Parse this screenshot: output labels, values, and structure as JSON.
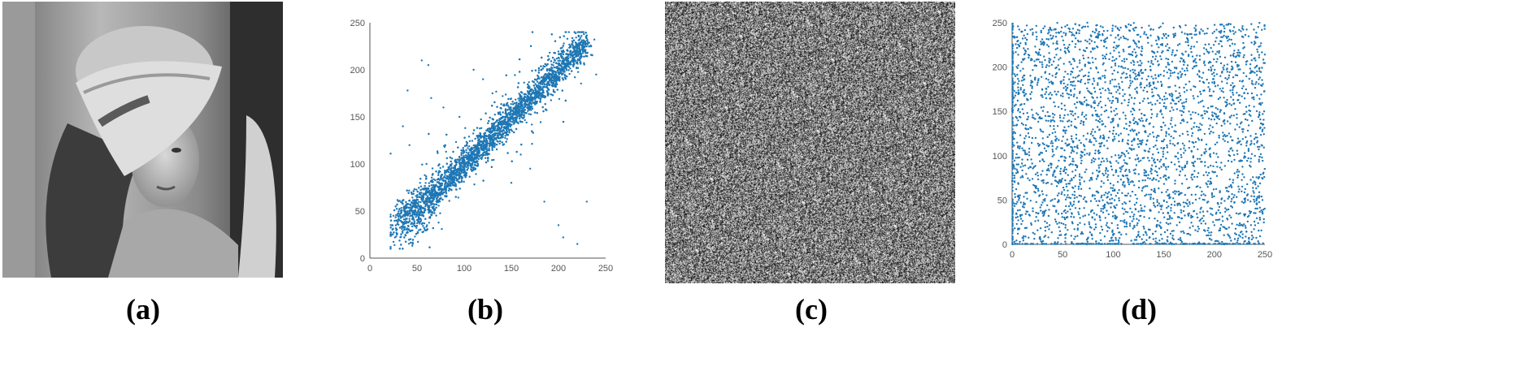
{
  "captions": {
    "a": "(a)",
    "b": "(b)",
    "c": "(c)",
    "d": "(d)"
  },
  "colors": {
    "point": "#1f77b4",
    "axis": "#555555",
    "noise_dark": "#111111",
    "noise_light": "#eeeeee"
  },
  "panel_a": {
    "content": "grayscale portrait photograph (woman wearing a wide-brimmed hat)"
  },
  "panel_c": {
    "content": "uniform random black-and-white noise image"
  },
  "chart_data": [
    {
      "id": "b",
      "type": "scatter",
      "xlim": [
        0,
        250
      ],
      "ylim": [
        0,
        250
      ],
      "x_ticks": [
        0,
        50,
        100,
        150,
        200,
        250
      ],
      "y_ticks": [
        0,
        50,
        100,
        150,
        200,
        250
      ],
      "grid": false,
      "description": "strongly correlated pixel pairs concentrated along the diagonal y = x from about (30,30) to (230,230)",
      "series": [
        {
          "points": [
            [
              55,
              210
            ],
            [
              62,
              205
            ],
            [
              40,
              178
            ],
            [
              65,
              170
            ],
            [
              78,
              160
            ],
            [
              120,
              190
            ],
            [
              110,
              200
            ],
            [
              170,
              95
            ],
            [
              185,
              60
            ],
            [
              200,
              35
            ],
            [
              220,
              15
            ],
            [
              230,
              60
            ],
            [
              205,
              22
            ],
            [
              42,
              120
            ],
            [
              25,
              45
            ],
            [
              35,
              140
            ],
            [
              240,
              195
            ],
            [
              225,
              240
            ],
            [
              28,
              40
            ],
            [
              60,
              100
            ],
            [
              150,
              80
            ],
            [
              160,
              110
            ],
            [
              95,
              150
            ],
            [
              80,
              120
            ],
            [
              130,
              175
            ]
          ]
        }
      ]
    },
    {
      "id": "d",
      "type": "scatter",
      "xlim": [
        0,
        250
      ],
      "ylim": [
        0,
        250
      ],
      "x_ticks": [
        0,
        50,
        100,
        150,
        200,
        250
      ],
      "y_ticks": [
        0,
        50,
        100,
        150,
        200,
        250
      ],
      "grid": false,
      "description": "uncorrelated pixel pairs spread uniformly over the whole 0-250 square, with dense rows along x = 0 and y = 0",
      "series": [
        {
          "points": [
            [
              10,
              240
            ],
            [
              30,
              200
            ],
            [
              55,
              180
            ],
            [
              80,
              220
            ],
            [
              120,
              230
            ],
            [
              150,
              190
            ],
            [
              200,
              240
            ],
            [
              240,
              210
            ],
            [
              20,
              120
            ],
            [
              60,
              90
            ],
            [
              100,
              140
            ],
            [
              140,
              60
            ],
            [
              180,
              110
            ],
            [
              220,
              80
            ],
            [
              245,
              30
            ],
            [
              35,
              20
            ],
            [
              90,
              40
            ],
            [
              130,
              20
            ],
            [
              170,
              160
            ],
            [
              210,
              140
            ]
          ]
        }
      ]
    }
  ]
}
